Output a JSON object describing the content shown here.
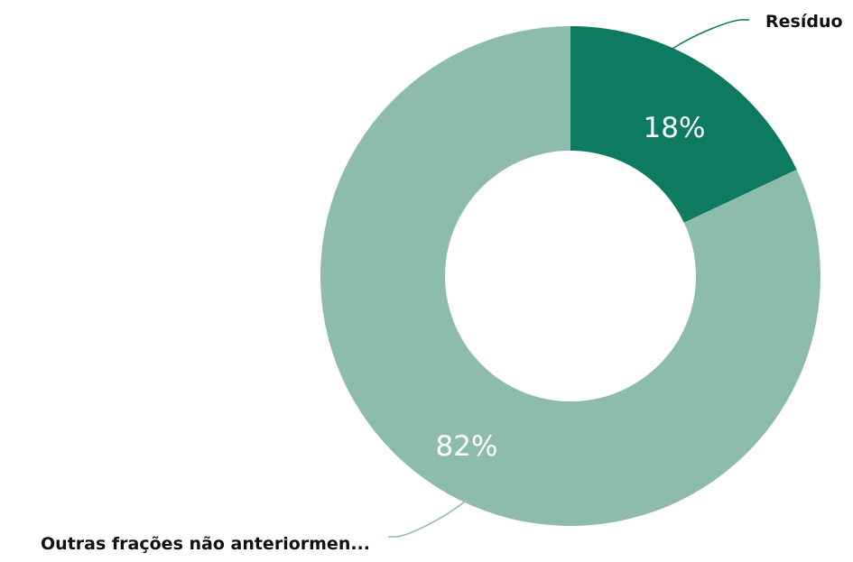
{
  "chart_data": {
    "type": "pie",
    "subtype": "donut",
    "slices": [
      {
        "label": "Resíduo",
        "value": 18,
        "pct_label": "18%",
        "color": "#0e7a5f"
      },
      {
        "label": "Outras frações não anteriormen...",
        "value": 82,
        "pct_label": "82%",
        "color": "#8dbcad"
      }
    ],
    "leader_color_dark": "#0e7a5f",
    "leader_color_light": "#8dbcad",
    "legend": "none"
  }
}
